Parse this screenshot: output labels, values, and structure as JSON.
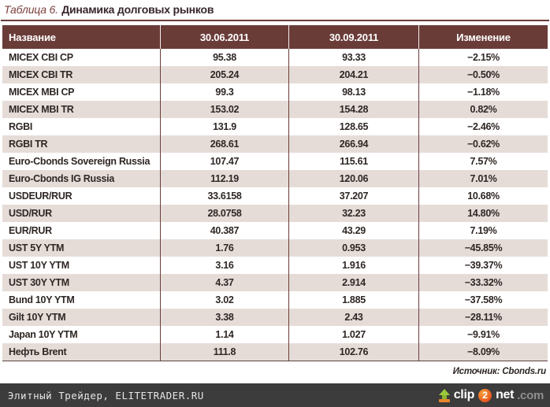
{
  "title": {
    "prefix": "Таблица 6.",
    "main": "Динамика долговых рынков"
  },
  "table": {
    "columns": [
      "Название",
      "30.06.2011",
      "30.09.2011",
      "Изменение"
    ],
    "rows": [
      {
        "name": "MICEX CBI CP",
        "v1": "95.38",
        "v2": "93.33",
        "change": "−2.15%"
      },
      {
        "name": "MICEX CBI TR",
        "v1": "205.24",
        "v2": "204.21",
        "change": "−0.50%"
      },
      {
        "name": "MICEX MBI CP",
        "v1": "99.3",
        "v2": "98.13",
        "change": "−1.18%"
      },
      {
        "name": "MICEX MBI TR",
        "v1": "153.02",
        "v2": "154.28",
        "change": "0.82%"
      },
      {
        "name": "RGBI",
        "v1": "131.9",
        "v2": "128.65",
        "change": "−2.46%"
      },
      {
        "name": "RGBI TR",
        "v1": "268.61",
        "v2": "266.94",
        "change": "−0.62%"
      },
      {
        "name": "Euro-Cbonds Sovereign Russia",
        "v1": "107.47",
        "v2": "115.61",
        "change": "7.57%"
      },
      {
        "name": "Euro-Cbonds IG Russia",
        "v1": "112.19",
        "v2": "120.06",
        "change": "7.01%"
      },
      {
        "name": "USDEUR/RUR",
        "v1": "33.6158",
        "v2": "37.207",
        "change": "10.68%"
      },
      {
        "name": "USD/RUR",
        "v1": "28.0758",
        "v2": "32.23",
        "change": "14.80%"
      },
      {
        "name": "EUR/RUR",
        "v1": "40.387",
        "v2": "43.29",
        "change": "7.19%"
      },
      {
        "name": "UST 5Y YTM",
        "v1": "1.76",
        "v2": "0.953",
        "change": "−45.85%"
      },
      {
        "name": "UST 10Y YTM",
        "v1": "3.16",
        "v2": "1.916",
        "change": "−39.37%"
      },
      {
        "name": "UST 30Y YTM",
        "v1": "4.37",
        "v2": "2.914",
        "change": "−33.32%"
      },
      {
        "name": "Bund 10Y YTM",
        "v1": "3.02",
        "v2": "1.885",
        "change": "−37.58%"
      },
      {
        "name": "Gilt 10Y YTM",
        "v1": "3.38",
        "v2": "2.43",
        "change": "−28.11%"
      },
      {
        "name": "Japan 10Y YTM",
        "v1": "1.14",
        "v2": "1.027",
        "change": "−9.91%"
      },
      {
        "name": "Нефть Brent",
        "v1": "111.8",
        "v2": "102.76",
        "change": "−8.09%"
      }
    ]
  },
  "source": "Источник: Cbonds.ru",
  "footer": {
    "site": "Элитный Трейдер, ELITETRADER.RU",
    "logo": {
      "clip": "clip",
      "two": "2",
      "net": "net",
      "com": ".com"
    }
  },
  "colors": {
    "header_bg": "#6A3C38",
    "stripe_row": "#E5DCD8",
    "title_accent": "#7B3F3C",
    "footer_bg": "#3C3C3C",
    "logo_green": "#9CC83C",
    "logo_orange": "#E8581E"
  }
}
